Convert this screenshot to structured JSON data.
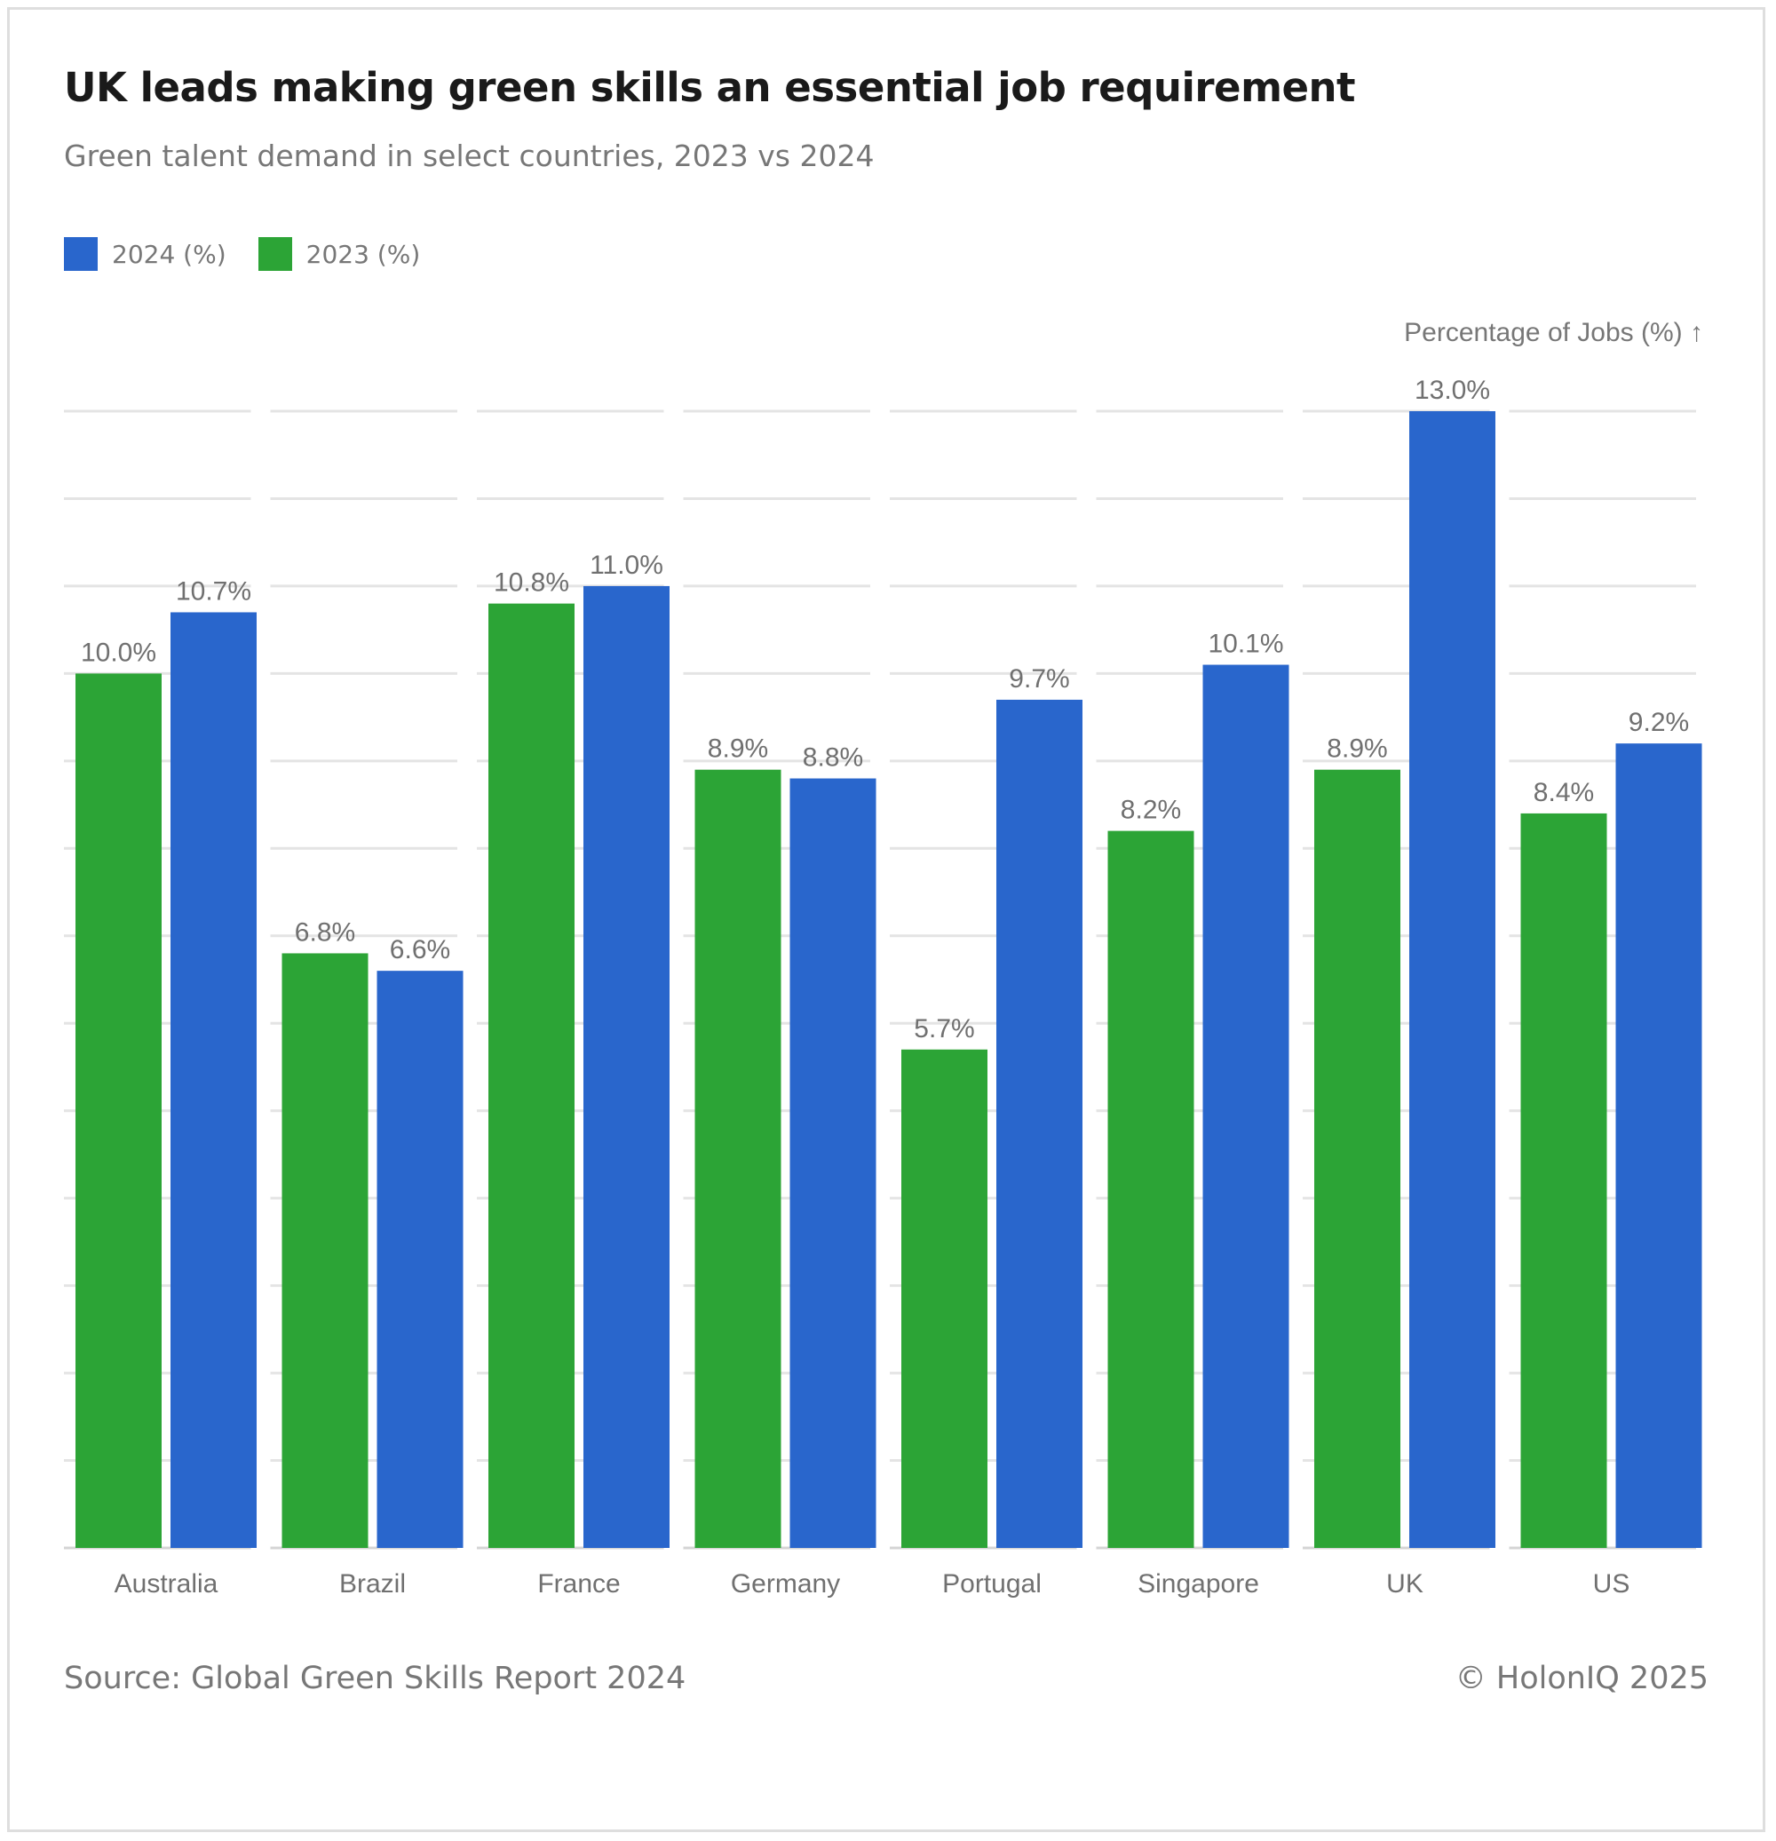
{
  "header": {
    "title": "UK leads making green skills an essential job requirement",
    "subtitle": "Green talent demand in select countries, 2023 vs 2024"
  },
  "legend": [
    {
      "label": "2024 (%)",
      "color": "#2966cc"
    },
    {
      "label": "2023 (%)",
      "color": "#2ca436"
    }
  ],
  "footer": {
    "source": "Source: Global Green Skills Report 2024",
    "copyright": "© HolonIQ 2025"
  },
  "chart_data": {
    "type": "bar",
    "title": "UK leads making green skills an essential job requirement",
    "subtitle": "Green talent demand in select countries, 2023 vs 2024",
    "xlabel": "",
    "ylabel": "Percentage of Jobs (%) ↑",
    "ylim": [
      0,
      13
    ],
    "grid_step": 1,
    "grid": true,
    "legend_position": "top-left",
    "categories": [
      "Australia",
      "Brazil",
      "France",
      "Germany",
      "Portugal",
      "Singapore",
      "UK",
      "US"
    ],
    "series": [
      {
        "name": "2023 (%)",
        "color": "#2ca436",
        "values": [
          10.0,
          6.8,
          10.8,
          8.9,
          5.7,
          8.2,
          8.9,
          8.4
        ],
        "labels": [
          "10.0%",
          "6.8%",
          "10.8%",
          "8.9%",
          "5.7%",
          "8.2%",
          "8.9%",
          "8.4%"
        ]
      },
      {
        "name": "2024 (%)",
        "color": "#2966cc",
        "values": [
          10.7,
          6.6,
          11.0,
          8.8,
          9.7,
          10.1,
          13.0,
          9.2
        ],
        "labels": [
          "10.7%",
          "6.6%",
          "11.0%",
          "8.8%",
          "9.7%",
          "10.1%",
          "13.0%",
          "9.2%"
        ]
      }
    ]
  }
}
